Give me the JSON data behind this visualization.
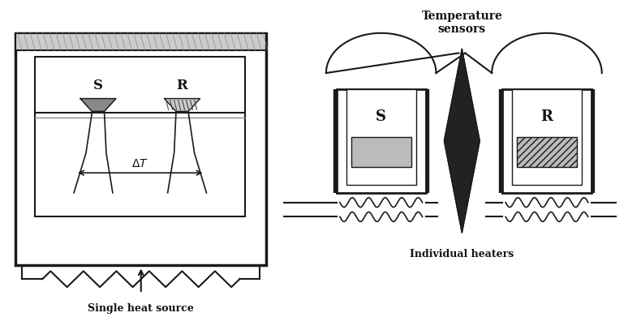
{
  "bg_color": "#ffffff",
  "line_color": "#1a1a1a",
  "text_color": "#111111",
  "label_single_heat": "Single heat source",
  "label_temp_sensors": "Temperature\nsensors",
  "label_ind_heaters": "Individual heaters",
  "label_S": "S",
  "label_R": "R",
  "label_delta_T": "ΔT"
}
